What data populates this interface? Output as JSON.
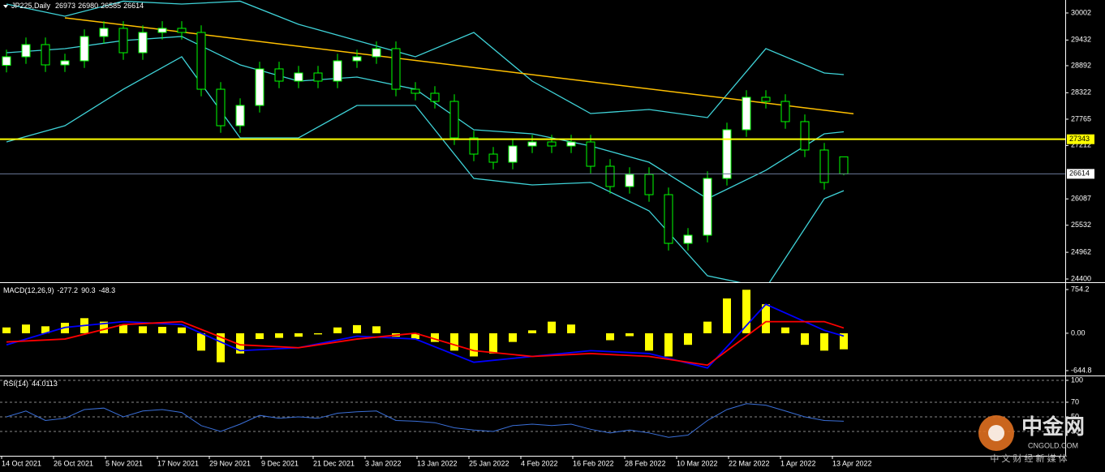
{
  "chart_data": [
    {
      "type": "candlestick",
      "title": "JP225,Daily",
      "last_quote": [
        26973,
        26980,
        26585,
        26614
      ],
      "open": [
        28900,
        29080,
        29336,
        28909,
        28994,
        29507,
        29678,
        29165,
        29592,
        29678,
        29592,
        28396,
        27628,
        28055,
        28824,
        28567,
        28738,
        28567,
        28994,
        29080,
        29251,
        28396,
        28311,
        28140,
        27372,
        27030,
        26859,
        27201,
        27286,
        27201,
        27286,
        26774,
        26347,
        26603,
        26176,
        25151,
        25322,
        26518,
        27543,
        28226,
        28140,
        27714,
        27116,
        26973
      ],
      "high": [
        29230,
        29486,
        29486,
        29144,
        29657,
        29828,
        29828,
        29742,
        29828,
        29828,
        29742,
        28546,
        28205,
        28974,
        28974,
        28888,
        28888,
        29144,
        29230,
        29401,
        29401,
        28546,
        28461,
        28290,
        27522,
        27180,
        27351,
        27436,
        27436,
        27436,
        27436,
        26924,
        26753,
        26753,
        26326,
        25472,
        26668,
        27693,
        28376,
        28376,
        28290,
        27864,
        27266,
        26980
      ],
      "low": [
        28750,
        28930,
        28759,
        28759,
        28844,
        29357,
        29015,
        29015,
        29442,
        29442,
        28246,
        27478,
        27478,
        27905,
        28417,
        28417,
        28417,
        28417,
        28844,
        28930,
        28246,
        28161,
        27990,
        27222,
        26880,
        26709,
        26709,
        27051,
        27051,
        27051,
        26624,
        26197,
        26197,
        26026,
        25001,
        25001,
        25172,
        26368,
        27393,
        27990,
        27564,
        26966,
        26283,
        26585
      ],
      "close": [
        29080,
        29336,
        28909,
        28994,
        29507,
        29678,
        29165,
        29592,
        29678,
        29592,
        28396,
        27628,
        28055,
        28824,
        28567,
        28738,
        28567,
        28994,
        29080,
        29251,
        28396,
        28311,
        28140,
        27372,
        27030,
        26859,
        27201,
        27286,
        27201,
        27286,
        26774,
        26347,
        26603,
        26176,
        25151,
        25322,
        26518,
        27543,
        28226,
        28140,
        27714,
        27116,
        26433,
        26614
      ],
      "bull_color": "#ffffff",
      "bear_color": "#000000",
      "wick_color": "#00ff00",
      "bands": {
        "x": [
          0,
          3,
          6,
          9,
          12,
          15,
          18,
          21,
          24,
          27,
          30,
          33,
          36,
          39,
          42,
          43
        ],
        "upper": [
          30190,
          29934,
          30250,
          30190,
          30250,
          29763,
          29421,
          29080,
          29592,
          28567,
          27884,
          27969,
          27799,
          29251,
          28738,
          28704
        ],
        "middle": [
          29165,
          29251,
          29421,
          29507,
          28909,
          28567,
          28653,
          28396,
          27543,
          27457,
          27201,
          26859,
          26091,
          26689,
          27457,
          27500
        ],
        "lower": [
          27286,
          27628,
          28396,
          29080,
          27372,
          27372,
          28055,
          28055,
          26518,
          26381,
          26433,
          25835,
          24468,
          24212,
          26091,
          26260
        ],
        "color": "#3fd3d8"
      },
      "trendline": {
        "x": [
          3,
          43.5
        ],
        "y": [
          29900,
          27880
        ],
        "color": "#ffc000"
      },
      "level": 27343,
      "level_color": "#ffff00",
      "last_price": 26614,
      "ylim": [
        24332,
        30275
      ],
      "yticks": [
        30002,
        29432,
        28892,
        28322,
        27765,
        27212,
        26087,
        25532,
        24962,
        24400
      ],
      "x_labels": [
        "14 Oct 2021",
        "26 Oct 2021",
        "5 Nov 2021",
        "17 Nov 2021",
        "29 Nov 2021",
        "9 Dec 2021",
        "21 Dec 2021",
        "3 Jan 2022",
        "13 Jan 2022",
        "25 Jan 2022",
        "4 Feb 2022",
        "16 Feb 2022",
        "28 Feb 2022",
        "10 Mar 2022",
        "22 Mar 2022",
        "1 Apr 2022",
        "13 Apr 2022"
      ]
    },
    {
      "type": "macd",
      "title": "MACD(12,26,9)",
      "readouts": [
        -277.2,
        90.3,
        -48.3
      ],
      "histogram": [
        100,
        150,
        120,
        180,
        260,
        200,
        150,
        120,
        110,
        100,
        -300,
        -500,
        -350,
        -100,
        -80,
        -60,
        -20,
        100,
        140,
        120,
        -60,
        -100,
        -150,
        -300,
        -400,
        -350,
        -150,
        50,
        200,
        150,
        0,
        -120,
        -50,
        -300,
        -400,
        -200,
        200,
        600,
        750,
        500,
        100,
        -200,
        -300,
        -277.2
      ],
      "histogram_color": "#ffff00",
      "x": [
        0,
        3,
        6,
        9,
        12,
        15,
        18,
        21,
        24,
        27,
        30,
        33,
        36,
        39,
        42,
        43
      ],
      "series": [
        {
          "color": "#0000ff",
          "values": [
            -200,
            100,
            200,
            150,
            -300,
            -250,
            -50,
            -100,
            -500,
            -400,
            -300,
            -350,
            -600,
            500,
            50,
            -48.3
          ]
        },
        {
          "color": "#ff0000",
          "values": [
            -150,
            -100,
            150,
            200,
            -200,
            -250,
            -100,
            0,
            -300,
            -400,
            -350,
            -400,
            -550,
            200,
            200,
            90.3
          ]
        }
      ],
      "ylim": [
        -728.7,
        852
      ],
      "yticks": [
        754.2,
        {
          "value": 0,
          "label": "0.00"
        },
        -644.8
      ]
    },
    {
      "type": "rsi",
      "title": "RSI(14)",
      "readout": 44.0113,
      "values": [
        50,
        58,
        45,
        48,
        60,
        62,
        50,
        58,
        60,
        56,
        38,
        30,
        40,
        52,
        48,
        50,
        48,
        55,
        57,
        58,
        45,
        44,
        42,
        35,
        32,
        30,
        38,
        40,
        38,
        40,
        33,
        28,
        32,
        28,
        22,
        25,
        45,
        60,
        68,
        66,
        58,
        50,
        45,
        44.0113
      ],
      "color": "#3a6fd8",
      "ylim": [
        -3.3,
        104.4
      ],
      "yticks": [
        100,
        70,
        50,
        30
      ],
      "grid": true
    }
  ],
  "watermark": {
    "name": "中金网",
    "site": "CNGOLD.COM",
    "slogan": "中 文 财 经 新 媒 体"
  }
}
